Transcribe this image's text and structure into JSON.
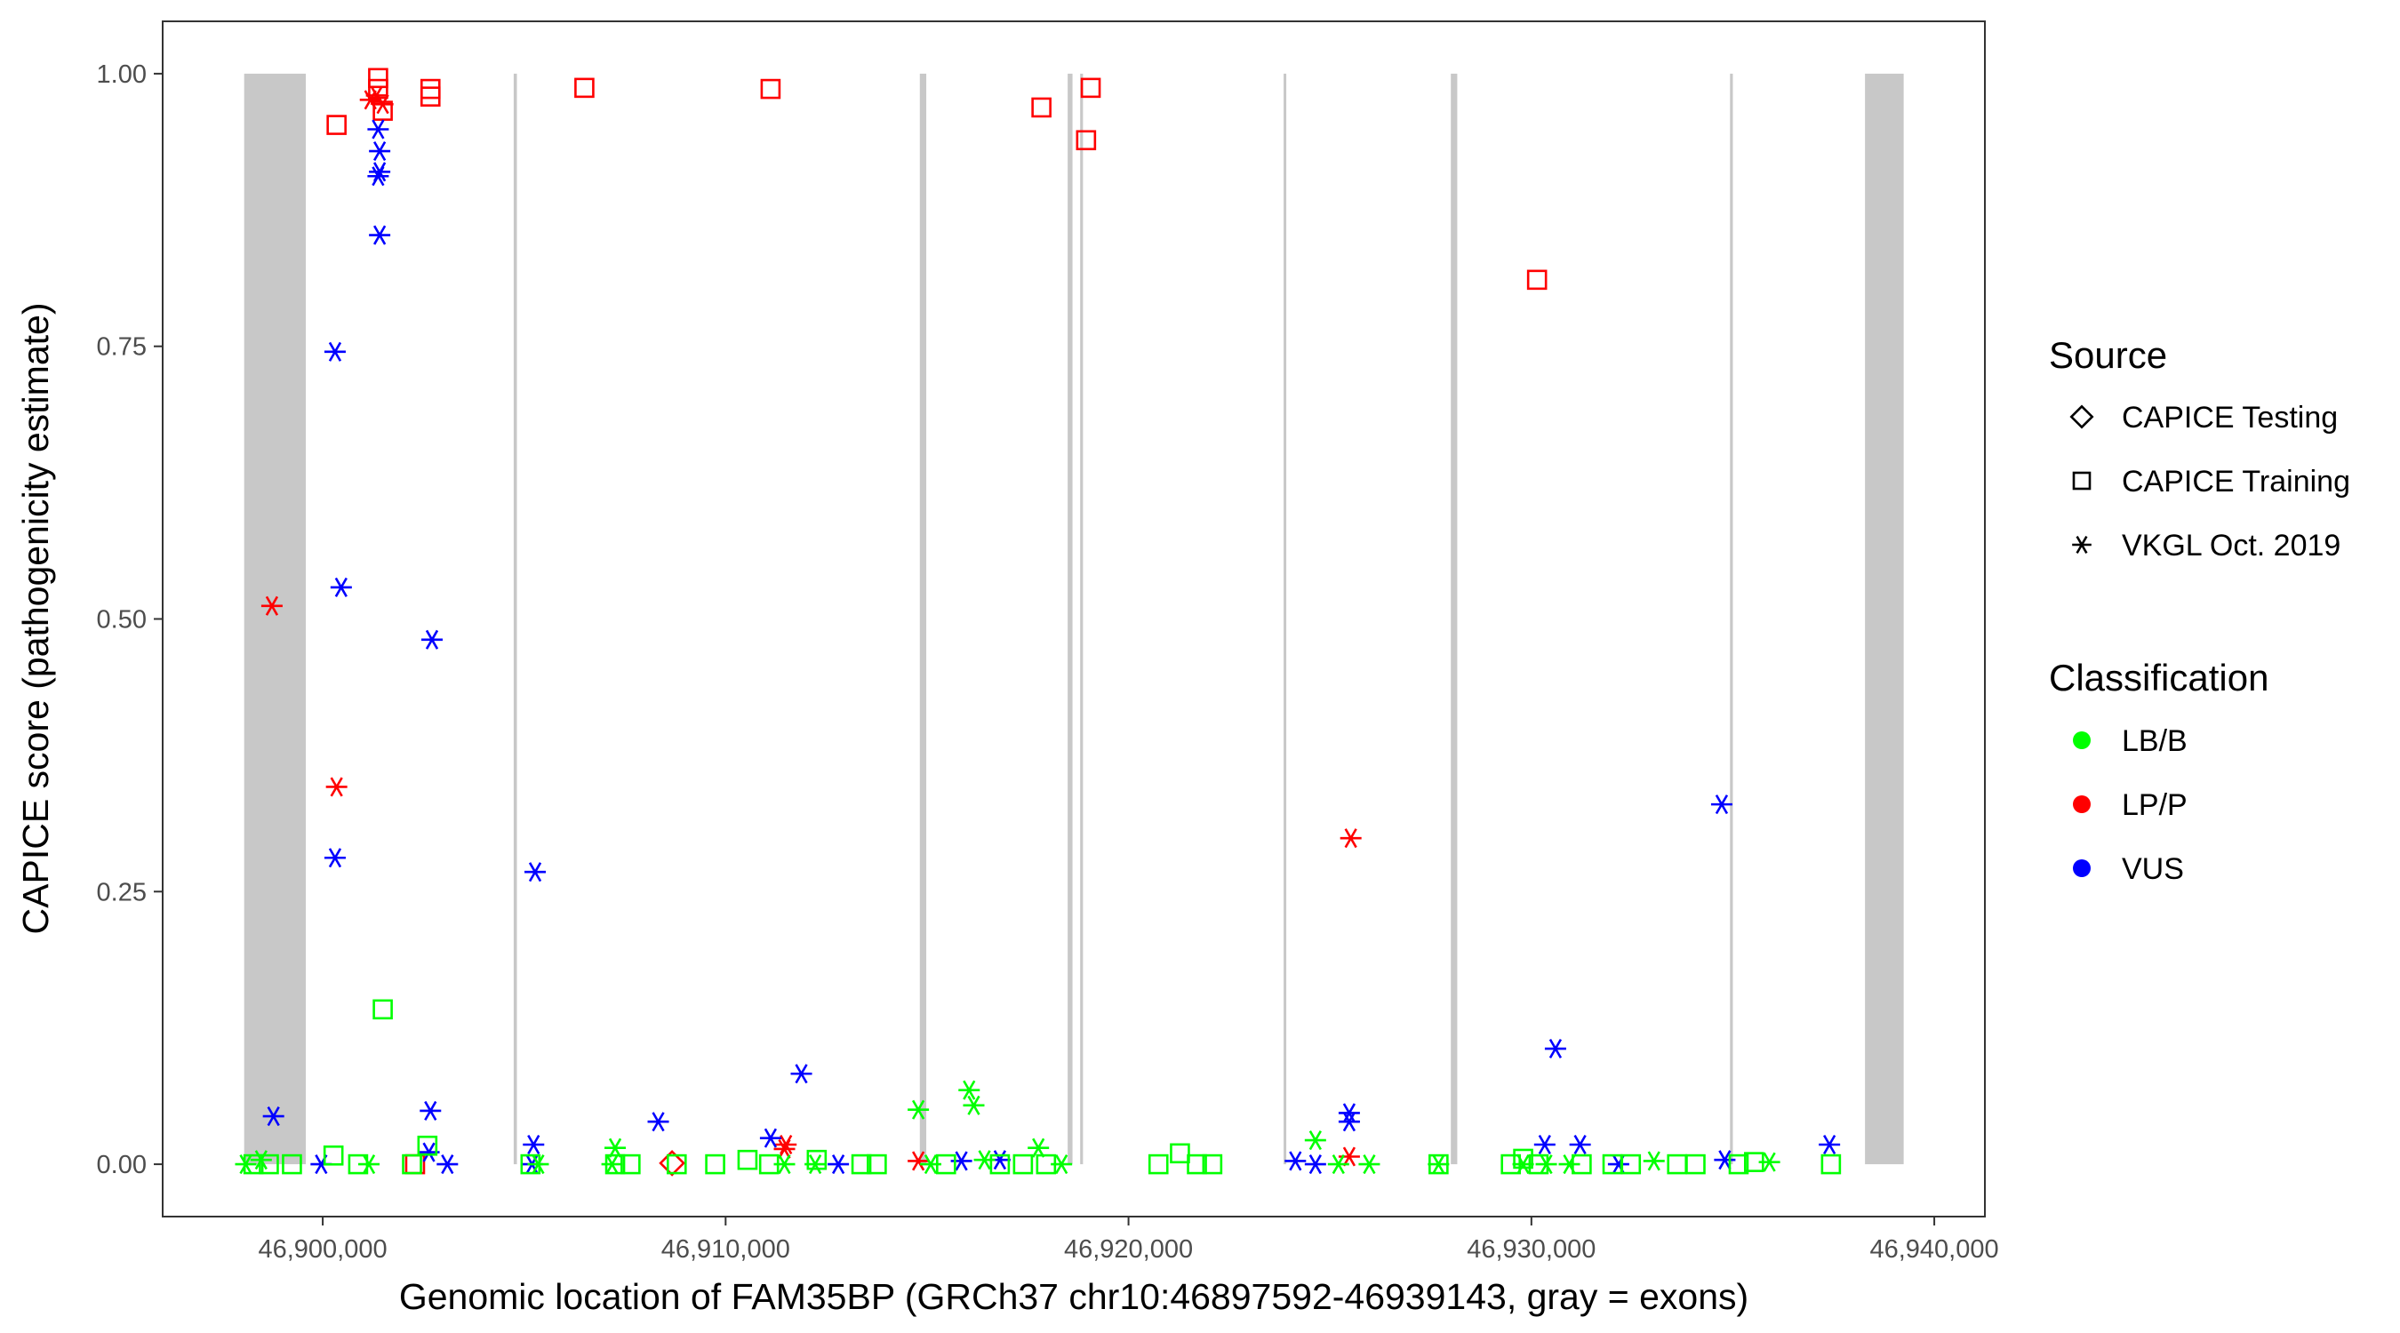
{
  "chart_data": {
    "type": "scatter",
    "xlabel": "Genomic location of FAM35BP (GRCh37 chr10:46897592-46939143, gray = exons)",
    "ylabel": "CAPICE score (pathogenicity estimate)",
    "xlim": [
      46896027,
      46941256
    ],
    "ylim": [
      -0.048,
      1.048
    ],
    "xticks": [
      46900000,
      46910000,
      46920000,
      46930000,
      46940000
    ],
    "xtick_labels": [
      "46,900,000",
      "46,910,000",
      "46,920,000",
      "46,930,000",
      "46,940,000"
    ],
    "yticks": [
      0,
      0.25,
      0.5,
      0.75,
      1
    ],
    "ytick_labels": [
      "0.00",
      "0.25",
      "0.50",
      "0.75",
      "1.00"
    ],
    "grid": false,
    "legend_placement": "right",
    "exon_color": "#c8c8c8",
    "exons": [
      [
        46898050,
        46899580
      ],
      [
        46904740,
        46904820
      ],
      [
        46914820,
        46914980
      ],
      [
        46918490,
        46918610
      ],
      [
        46918800,
        46918870
      ],
      [
        46923850,
        46923910
      ],
      [
        46928000,
        46928160
      ],
      [
        46934930,
        46935000
      ],
      [
        46938280,
        46939240
      ]
    ],
    "legend_source": {
      "title": "Source",
      "items": [
        {
          "label": "CAPICE Testing",
          "shape": "diamond"
        },
        {
          "label": "CAPICE Training",
          "shape": "square"
        },
        {
          "label": "VKGL Oct. 2019",
          "shape": "asterisk"
        }
      ]
    },
    "legend_classification": {
      "title": "Classification",
      "items": [
        {
          "label": "LB/B",
          "color": "#00ff00"
        },
        {
          "label": "LP/P",
          "color": "#ff0000"
        },
        {
          "label": "VUS",
          "color": "#0000ff"
        }
      ]
    },
    "series": [
      {
        "source": "CAPICE Training",
        "classification": "LP/P",
        "points": [
          [
            46900344,
            0.953
          ],
          [
            46901375,
            0.996
          ],
          [
            46901375,
            0.986
          ],
          [
            46901490,
            0.966
          ],
          [
            46902674,
            0.986
          ],
          [
            46902674,
            0.979
          ],
          [
            46906494,
            0.987
          ],
          [
            46911116,
            0.986
          ],
          [
            46917839,
            0.969
          ],
          [
            46919062,
            0.987
          ],
          [
            46918947,
            0.939
          ],
          [
            46930140,
            0.811
          ],
          [
            46902292,
            0.0
          ]
        ]
      },
      {
        "source": "VKGL Oct. 2019",
        "classification": "LP/P",
        "points": [
          [
            46901337,
            0.98
          ],
          [
            46901490,
            0.972
          ],
          [
            46901184,
            0.976
          ],
          [
            46898739,
            0.512
          ],
          [
            46900344,
            0.346
          ],
          [
            46925518,
            0.299
          ],
          [
            46911498,
            0.018
          ],
          [
            46911460,
            0.014
          ],
          [
            46914783,
            0.003
          ],
          [
            46925479,
            0.007
          ]
        ]
      },
      {
        "source": "CAPICE Testing",
        "classification": "LP/P",
        "points": [
          [
            46908671,
            0.001
          ]
        ]
      },
      {
        "source": "VKGL Oct. 2019",
        "classification": "VUS",
        "points": [
          [
            46901375,
            0.949
          ],
          [
            46901413,
            0.929
          ],
          [
            46901413,
            0.91
          ],
          [
            46901375,
            0.906
          ],
          [
            46901413,
            0.852
          ],
          [
            46900306,
            0.745
          ],
          [
            46900458,
            0.529
          ],
          [
            46902712,
            0.481
          ],
          [
            46900306,
            0.281
          ],
          [
            46905272,
            0.268
          ],
          [
            46934724,
            0.33
          ],
          [
            46930598,
            0.106
          ],
          [
            46911880,
            0.083
          ],
          [
            46908328,
            0.039
          ],
          [
            46898778,
            0.044
          ],
          [
            46902674,
            0.049
          ],
          [
            46925479,
            0.047
          ],
          [
            46925479,
            0.039
          ],
          [
            46911116,
            0.024
          ],
          [
            46930331,
            0.018
          ],
          [
            46931209,
            0.018
          ],
          [
            46937398,
            0.018
          ],
          [
            46905233,
            0.018
          ],
          [
            46902636,
            0.011
          ],
          [
            46899962,
            0.0
          ],
          [
            46905195,
            0.0
          ],
          [
            46912797,
            0.0
          ],
          [
            46915853,
            0.003
          ],
          [
            46916808,
            0.004
          ],
          [
            46924142,
            0.003
          ],
          [
            46924639,
            0.0
          ],
          [
            46932164,
            0.0
          ],
          [
            46934800,
            0.004
          ],
          [
            46903094,
            0.0
          ]
        ]
      },
      {
        "source": "CAPICE Training",
        "classification": "LB/B",
        "points": [
          [
            46901490,
            0.142
          ],
          [
            46902598,
            0.017
          ],
          [
            46898281,
            0.0
          ],
          [
            46898663,
            0.0
          ],
          [
            46899236,
            0.0
          ],
          [
            46900267,
            0.008
          ],
          [
            46900879,
            0.0
          ],
          [
            46902216,
            0.0
          ],
          [
            46905157,
            0.0
          ],
          [
            46907258,
            0.0
          ],
          [
            46907640,
            0.0
          ],
          [
            46908786,
            0.0
          ],
          [
            46909741,
            0.0
          ],
          [
            46910543,
            0.004
          ],
          [
            46911078,
            0.0
          ],
          [
            46912262,
            0.004
          ],
          [
            46913370,
            0.0
          ],
          [
            46913752,
            0.0
          ],
          [
            46915471,
            0.0
          ],
          [
            46916808,
            0.0
          ],
          [
            46917381,
            0.0
          ],
          [
            46917954,
            0.0
          ],
          [
            46920743,
            0.0
          ],
          [
            46921277,
            0.01
          ],
          [
            46921698,
            0.0
          ],
          [
            46922080,
            0.0
          ],
          [
            46927695,
            0.0
          ],
          [
            46929490,
            0.0
          ],
          [
            46929796,
            0.005
          ],
          [
            46930178,
            0.0
          ],
          [
            46931248,
            0.0
          ],
          [
            46932012,
            0.0
          ],
          [
            46932470,
            0.0
          ],
          [
            46933616,
            0.0
          ],
          [
            46934074,
            0.0
          ],
          [
            46935144,
            0.0
          ],
          [
            46935526,
            0.002
          ],
          [
            46937436,
            0.0
          ]
        ]
      },
      {
        "source": "VKGL Oct. 2019",
        "classification": "LB/B",
        "points": [
          [
            46914783,
            0.05
          ],
          [
            46916044,
            0.068
          ],
          [
            46916159,
            0.054
          ],
          [
            46924639,
            0.022
          ],
          [
            46917763,
            0.015
          ],
          [
            46907258,
            0.015
          ],
          [
            46898090,
            0.0
          ],
          [
            46898472,
            0.004
          ],
          [
            46901146,
            0.0
          ],
          [
            46905348,
            0.0
          ],
          [
            46907182,
            0.0
          ],
          [
            46911460,
            0.0
          ],
          [
            46912224,
            0.0
          ],
          [
            46915089,
            0.0
          ],
          [
            46916426,
            0.004
          ],
          [
            46918336,
            0.0
          ],
          [
            46925212,
            0.0
          ],
          [
            46925976,
            0.0
          ],
          [
            46927695,
            0.0
          ],
          [
            46929796,
            0.0
          ],
          [
            46930369,
            0.0
          ],
          [
            46930942,
            0.0
          ],
          [
            46933043,
            0.003
          ],
          [
            46935908,
            0.002
          ]
        ]
      }
    ]
  }
}
